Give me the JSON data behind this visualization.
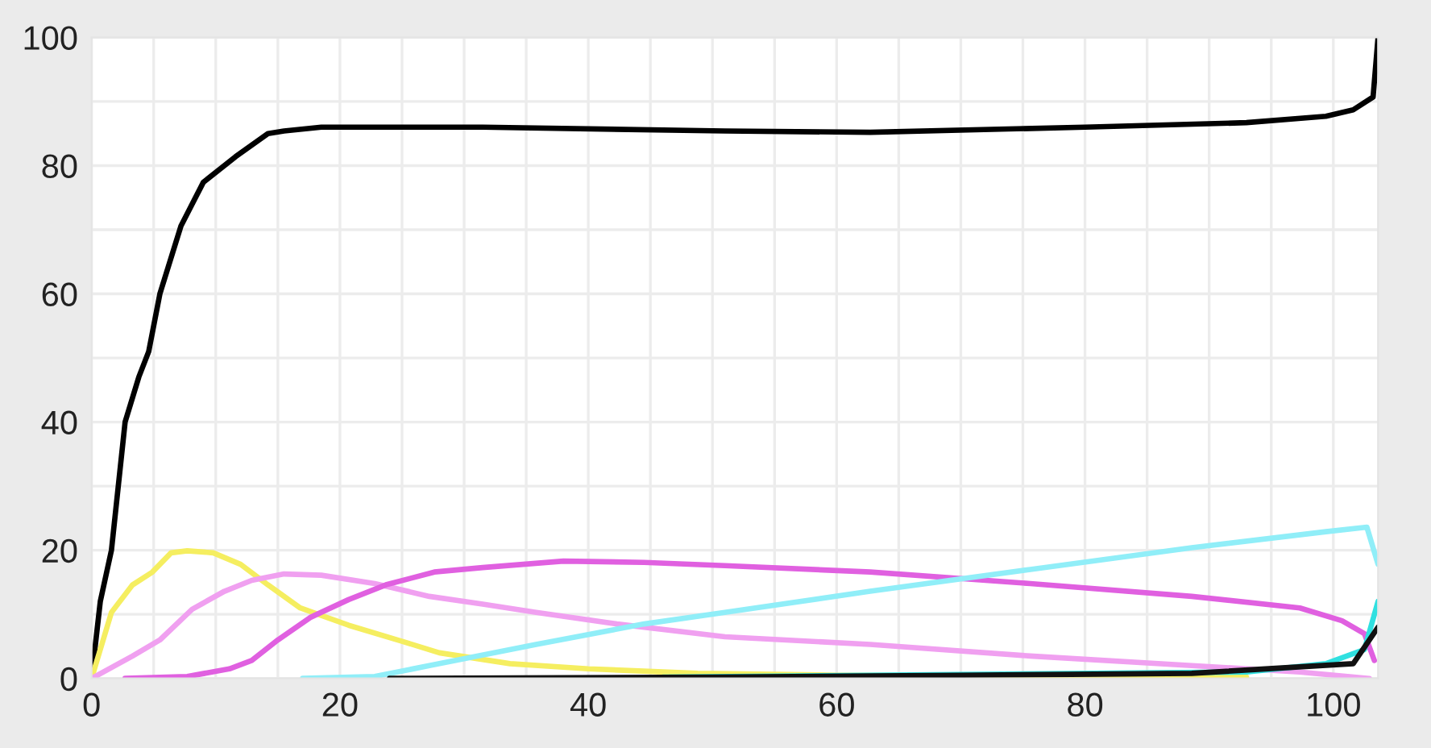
{
  "chart_data": {
    "type": "line",
    "xlim": [
      0,
      103.6
    ],
    "ylim": [
      0,
      100
    ],
    "xticks": [
      0,
      {
        "value": 5,
        "label": null
      },
      {
        "value": 10,
        "label": null
      },
      {
        "value": 15,
        "label": null
      },
      20,
      {
        "value": 25,
        "label": null
      },
      {
        "value": 30,
        "label": null
      },
      {
        "value": 35,
        "label": null
      },
      40,
      {
        "value": 45,
        "label": null
      },
      {
        "value": 50,
        "label": null
      },
      {
        "value": 55,
        "label": null
      },
      60,
      {
        "value": 65,
        "label": null
      },
      {
        "value": 70,
        "label": null
      },
      {
        "value": 75,
        "label": null
      },
      80,
      {
        "value": 85,
        "label": null
      },
      {
        "value": 90,
        "label": null
      },
      {
        "value": 95,
        "label": null
      },
      100
    ],
    "yticks": [
      0,
      {
        "value": 10,
        "label": null
      },
      20,
      {
        "value": 30,
        "label": null
      },
      40,
      {
        "value": 50,
        "label": null
      },
      60,
      {
        "value": 70,
        "label": null
      },
      80,
      {
        "value": 90,
        "label": null
      },
      100
    ],
    "grid": true,
    "legend": false,
    "marker": "none",
    "line_style": "solid",
    "series": [
      {
        "color": "#000000",
        "x": [
          0,
          0.7,
          1.6,
          2.7,
          3.8,
          4.6,
          5.5,
          7.2,
          9.0,
          11.6,
          14.2,
          15.5,
          18.5,
          31.5,
          51,
          62.7,
          80,
          93,
          99.4,
          101.6,
          103.2,
          103.6
        ],
        "values": [
          0,
          12,
          20,
          40,
          47,
          51,
          60,
          70.6,
          77.4,
          81.4,
          85,
          85.4,
          86,
          86,
          85.4,
          85.2,
          86,
          86.7,
          87.7,
          88.7,
          90.7,
          100
        ]
      },
      {
        "color": "#f5ee60",
        "x": [
          0,
          1.6,
          3.3,
          4.9,
          6.4,
          7.7,
          9.8,
          12,
          14.2,
          16.8,
          20.7,
          25,
          28,
          33.7,
          40,
          48.8,
          60,
          80,
          93
        ],
        "values": [
          0,
          10.3,
          14.6,
          16.6,
          19.6,
          19.9,
          19.6,
          17.8,
          14.6,
          11,
          8.3,
          5.8,
          4,
          2.3,
          1.5,
          0.8,
          0.5,
          0.3,
          0.2
        ]
      },
      {
        "color": "#f0a0f0",
        "x": [
          0,
          3.3,
          5.5,
          8.1,
          10.7,
          12.9,
          15.5,
          18.5,
          22.8,
          27.2,
          31.5,
          35.8,
          42.3,
          51,
          62.7,
          75.6,
          88.6,
          97.3,
          102.9
        ],
        "values": [
          0,
          3.5,
          6,
          10.8,
          13.6,
          15.3,
          16.3,
          16.1,
          14.8,
          12.8,
          11.6,
          10.3,
          8.5,
          6.5,
          5.3,
          3.5,
          2,
          1,
          0
        ]
      },
      {
        "color": "#e060e0",
        "x": [
          2.7,
          7.7,
          11.1,
          12.9,
          15,
          17.6,
          20.7,
          23.7,
          27.6,
          31.5,
          38,
          44.5,
          51,
          62.7,
          75.6,
          88.6,
          97.3,
          100.7,
          102.5,
          103.3
        ],
        "values": [
          0,
          0.3,
          1.5,
          2.8,
          6,
          9.5,
          12.3,
          14.6,
          16.6,
          17.3,
          18.3,
          18.1,
          17.6,
          16.6,
          14.8,
          12.8,
          11,
          9,
          7,
          2.8
        ]
      },
      {
        "color": "#90eef8",
        "x": [
          17,
          22.8,
          27.2,
          35.8,
          44.5,
          51,
          62.7,
          75.6,
          88.6,
          99.4,
          102.7,
          103.6
        ],
        "values": [
          0,
          0.3,
          2,
          5.3,
          8.5,
          10.3,
          13.6,
          17,
          20.4,
          22.9,
          23.6,
          17.8
        ]
      },
      {
        "color": "#30e0e0",
        "x": [
          46,
          70,
          93,
          99.4,
          102.5,
          103.6
        ],
        "values": [
          0.2,
          null,
          1,
          2.3,
          4.5,
          12
        ]
      },
      {
        "color": "#111111",
        "x": [
          24,
          50,
          70,
          88.6,
          101.6,
          103.6
        ],
        "values": [
          0,
          0.2,
          0.5,
          0.8,
          2.3,
          8
        ]
      }
    ]
  }
}
